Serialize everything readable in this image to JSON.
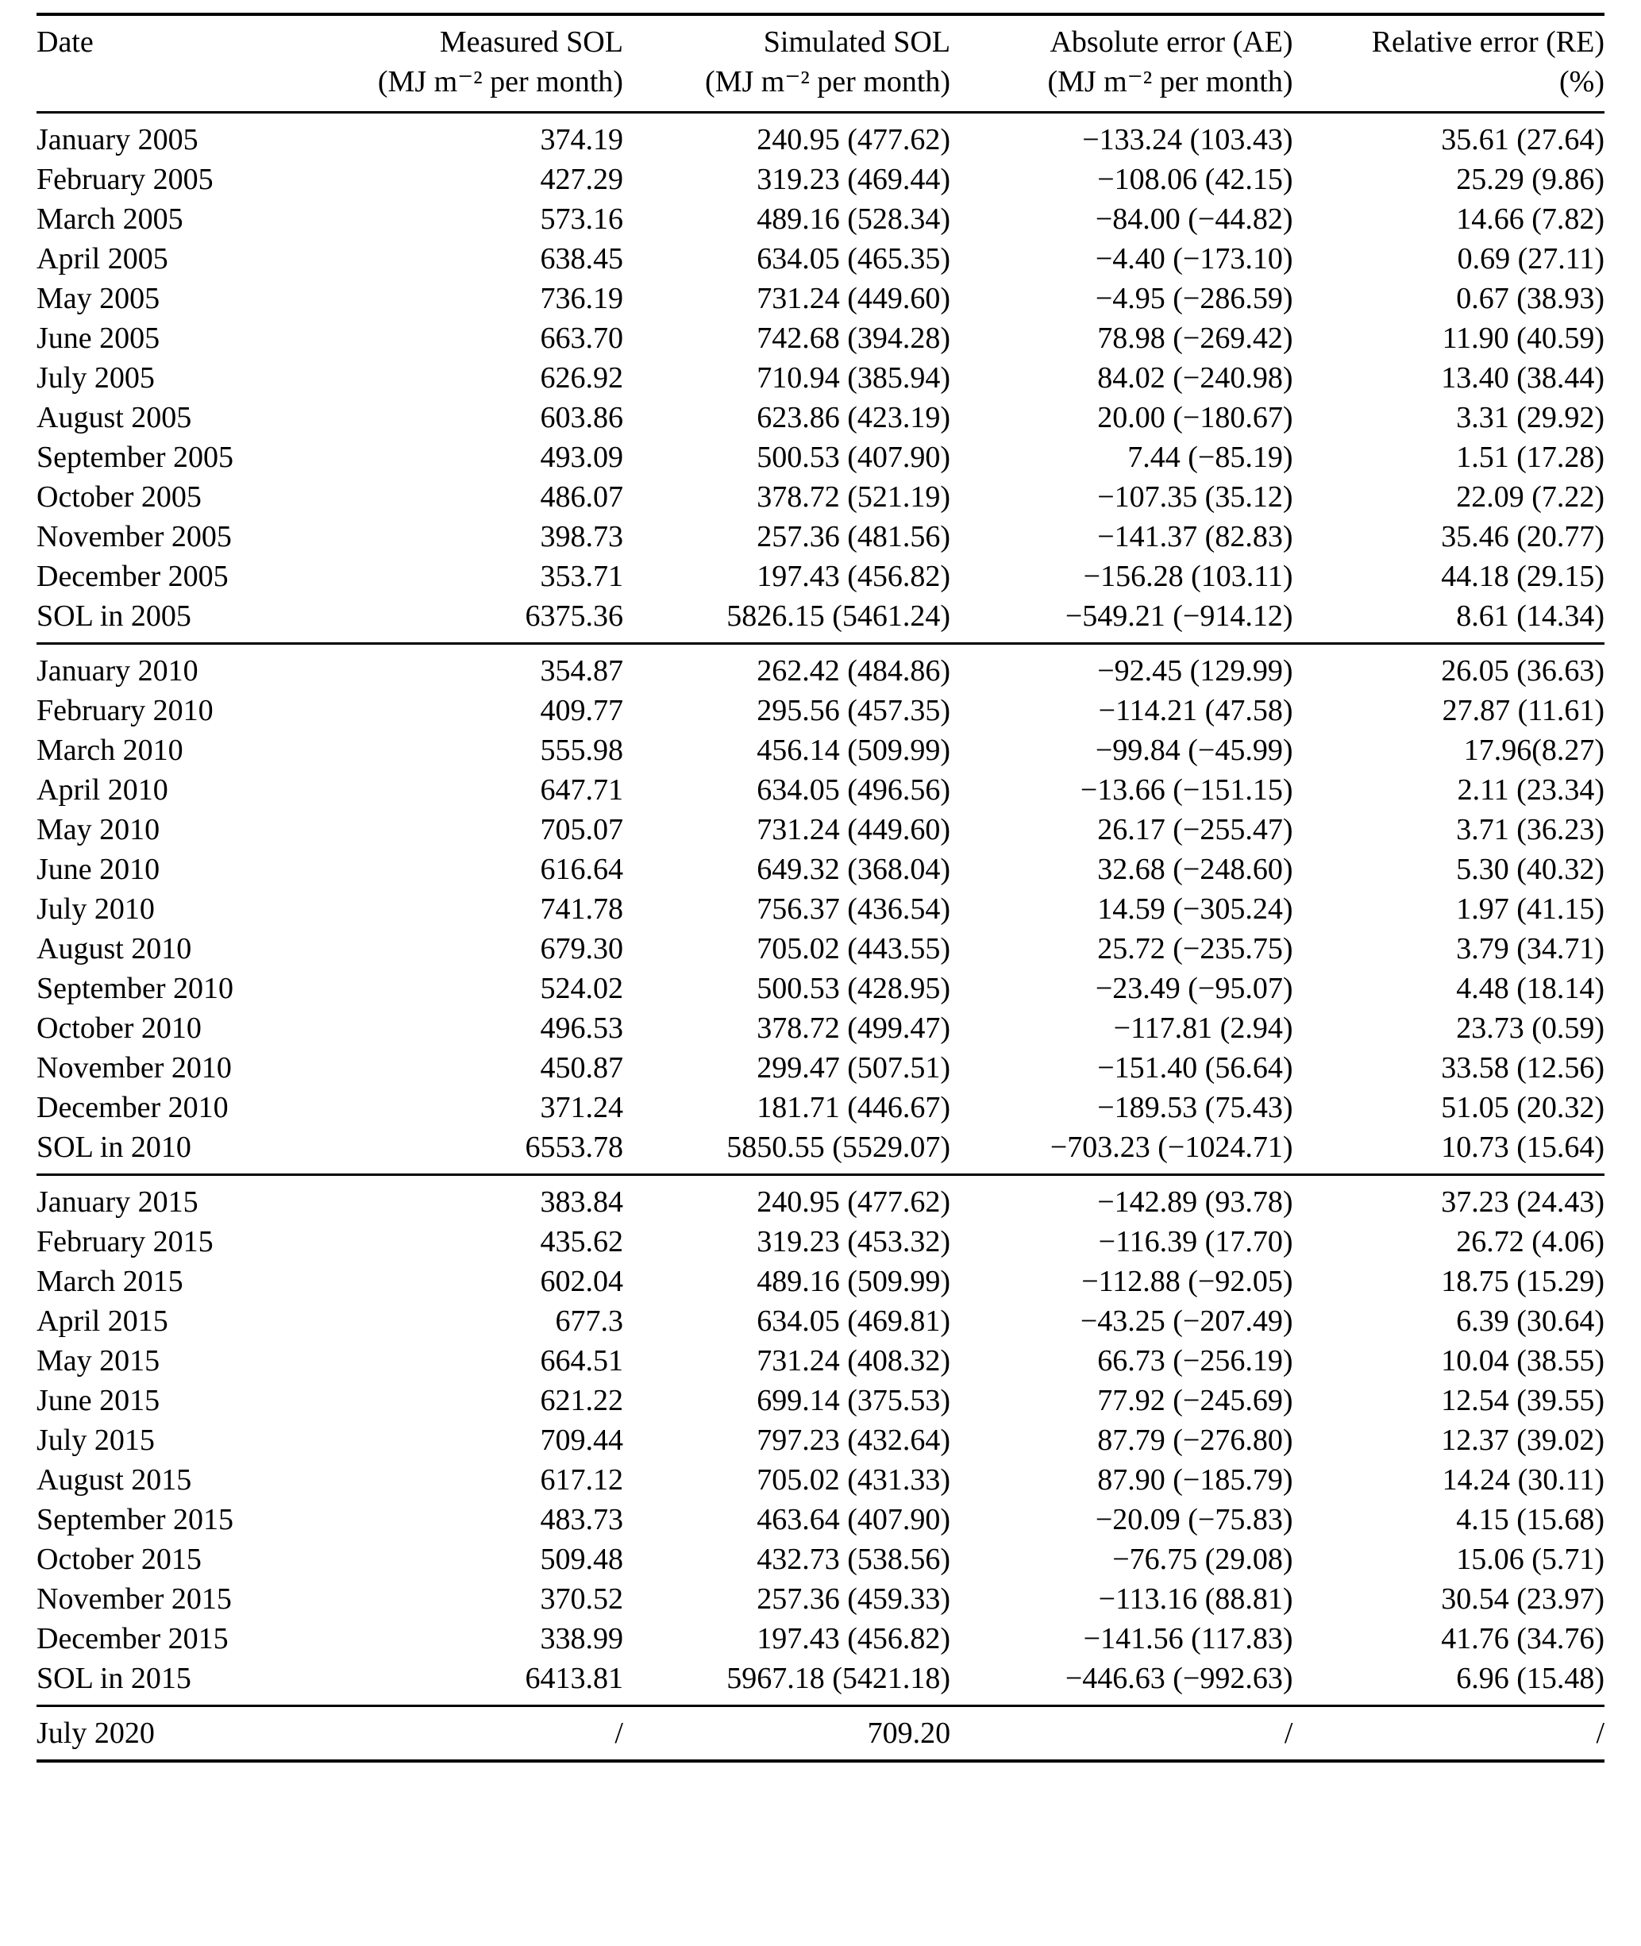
{
  "page": {
    "background_color": "#ffffff",
    "text_color": "#000000"
  },
  "table": {
    "header": {
      "columns": [
        {
          "line1": "Date",
          "line2": ""
        },
        {
          "line1": "Measured SOL",
          "line2": "(MJ m⁻² per month)"
        },
        {
          "line1": "Simulated SOL",
          "line2": "(MJ m⁻² per month)"
        },
        {
          "line1": "Absolute error (AE)",
          "line2": "(MJ m⁻² per month)"
        },
        {
          "line1": "Relative error (RE)",
          "line2": "(%)"
        }
      ]
    },
    "sections": [
      {
        "name": "2005",
        "rows": [
          [
            "January 2005",
            "374.19",
            "240.95 (477.62)",
            "−133.24 (103.43)",
            "35.61 (27.64)"
          ],
          [
            "February 2005",
            "427.29",
            "319.23 (469.44)",
            "−108.06 (42.15)",
            "25.29 (9.86)"
          ],
          [
            "March 2005",
            "573.16",
            "489.16 (528.34)",
            "−84.00 (−44.82)",
            "14.66 (7.82)"
          ],
          [
            "April 2005",
            "638.45",
            "634.05 (465.35)",
            "−4.40 (−173.10)",
            "0.69 (27.11)"
          ],
          [
            "May 2005",
            "736.19",
            "731.24 (449.60)",
            "−4.95 (−286.59)",
            "0.67 (38.93)"
          ],
          [
            "June 2005",
            "663.70",
            "742.68 (394.28)",
            "78.98 (−269.42)",
            "11.90 (40.59)"
          ],
          [
            "July 2005",
            "626.92",
            "710.94 (385.94)",
            "84.02 (−240.98)",
            "13.40 (38.44)"
          ],
          [
            "August 2005",
            "603.86",
            "623.86 (423.19)",
            "20.00 (−180.67)",
            "3.31 (29.92)"
          ],
          [
            "September 2005",
            "493.09",
            "500.53 (407.90)",
            "7.44 (−85.19)",
            "1.51 (17.28)"
          ],
          [
            "October 2005",
            "486.07",
            "378.72 (521.19)",
            "−107.35 (35.12)",
            "22.09 (7.22)"
          ],
          [
            "November 2005",
            "398.73",
            "257.36 (481.56)",
            "−141.37 (82.83)",
            "35.46 (20.77)"
          ],
          [
            "December 2005",
            "353.71",
            "197.43 (456.82)",
            "−156.28 (103.11)",
            "44.18 (29.15)"
          ],
          [
            "SOL in 2005",
            "6375.36",
            "5826.15 (5461.24)",
            "−549.21 (−914.12)",
            "8.61 (14.34)"
          ]
        ]
      },
      {
        "name": "2010",
        "rows": [
          [
            "January 2010",
            "354.87",
            "262.42 (484.86)",
            "−92.45 (129.99)",
            "26.05 (36.63)"
          ],
          [
            "February 2010",
            "409.77",
            "295.56 (457.35)",
            "−114.21 (47.58)",
            "27.87 (11.61)"
          ],
          [
            "March 2010",
            "555.98",
            "456.14 (509.99)",
            "−99.84 (−45.99)",
            "17.96(8.27)"
          ],
          [
            "April 2010",
            "647.71",
            "634.05 (496.56)",
            "−13.66 (−151.15)",
            "2.11 (23.34)"
          ],
          [
            "May 2010",
            "705.07",
            "731.24 (449.60)",
            "26.17 (−255.47)",
            "3.71 (36.23)"
          ],
          [
            "June 2010",
            "616.64",
            "649.32 (368.04)",
            "32.68 (−248.60)",
            "5.30 (40.32)"
          ],
          [
            "July 2010",
            "741.78",
            "756.37 (436.54)",
            "14.59 (−305.24)",
            "1.97 (41.15)"
          ],
          [
            "August 2010",
            "679.30",
            "705.02 (443.55)",
            "25.72 (−235.75)",
            "3.79 (34.71)"
          ],
          [
            "September 2010",
            "524.02",
            "500.53 (428.95)",
            "−23.49 (−95.07)",
            "4.48 (18.14)"
          ],
          [
            "October 2010",
            "496.53",
            "378.72 (499.47)",
            "−117.81 (2.94)",
            "23.73 (0.59)"
          ],
          [
            "November 2010",
            "450.87",
            "299.47 (507.51)",
            "−151.40 (56.64)",
            "33.58 (12.56)"
          ],
          [
            "December 2010",
            "371.24",
            "181.71 (446.67)",
            "−189.53 (75.43)",
            "51.05 (20.32)"
          ],
          [
            "SOL in 2010",
            "6553.78",
            "5850.55 (5529.07)",
            "−703.23 (−1024.71)",
            "10.73 (15.64)"
          ]
        ]
      },
      {
        "name": "2015",
        "rows": [
          [
            "January 2015",
            "383.84",
            "240.95 (477.62)",
            "−142.89 (93.78)",
            "37.23 (24.43)"
          ],
          [
            "February 2015",
            "435.62",
            "319.23 (453.32)",
            "−116.39 (17.70)",
            "26.72 (4.06)"
          ],
          [
            "March 2015",
            "602.04",
            "489.16 (509.99)",
            "−112.88 (−92.05)",
            "18.75 (15.29)"
          ],
          [
            "April 2015",
            "677.3",
            "634.05 (469.81)",
            "−43.25 (−207.49)",
            "6.39 (30.64)"
          ],
          [
            "May 2015",
            "664.51",
            "731.24 (408.32)",
            "66.73 (−256.19)",
            "10.04 (38.55)"
          ],
          [
            "June 2015",
            "621.22",
            "699.14 (375.53)",
            "77.92 (−245.69)",
            "12.54 (39.55)"
          ],
          [
            "July 2015",
            "709.44",
            "797.23 (432.64)",
            "87.79 (−276.80)",
            "12.37 (39.02)"
          ],
          [
            "August 2015",
            "617.12",
            "705.02 (431.33)",
            "87.90 (−185.79)",
            "14.24 (30.11)"
          ],
          [
            "September 2015",
            "483.73",
            "463.64 (407.90)",
            "−20.09 (−75.83)",
            "4.15 (15.68)"
          ],
          [
            "October 2015",
            "509.48",
            "432.73 (538.56)",
            "−76.75 (29.08)",
            "15.06 (5.71)"
          ],
          [
            "November 2015",
            "370.52",
            "257.36 (459.33)",
            "−113.16 (88.81)",
            "30.54 (23.97)"
          ],
          [
            "December 2015",
            "338.99",
            "197.43 (456.82)",
            "−141.56 (117.83)",
            "41.76 (34.76)"
          ],
          [
            "SOL in 2015",
            "6413.81",
            "5967.18 (5421.18)",
            "−446.63 (−992.63)",
            "6.96 (15.48)"
          ]
        ]
      },
      {
        "name": "2020",
        "rows": [
          [
            "July 2020",
            "/",
            "709.20",
            "/",
            "/"
          ]
        ]
      }
    ]
  }
}
